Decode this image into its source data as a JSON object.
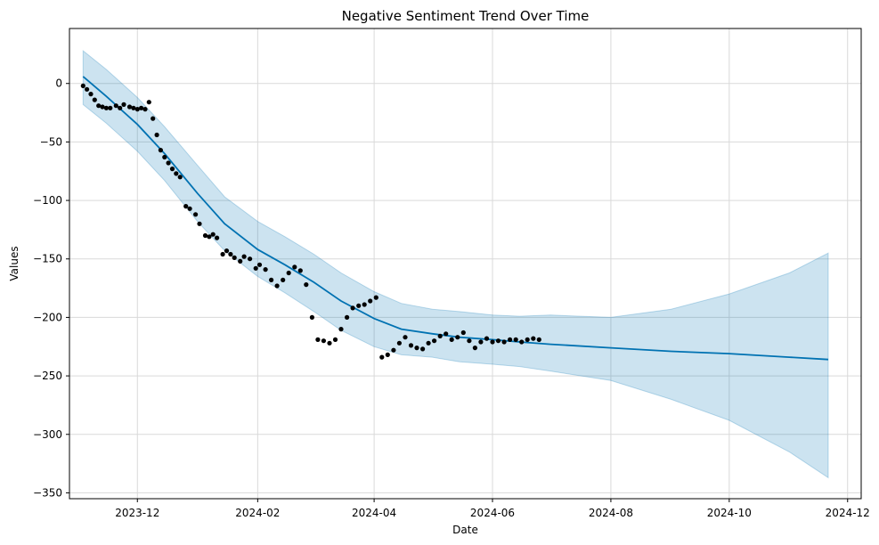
{
  "chart_data": {
    "type": "line",
    "title": "Negative Sentiment Trend Over Time",
    "xlabel": "Date",
    "ylabel": "Values",
    "x_is_date": true,
    "xlim": [
      "2023-10-27",
      "2024-12-08"
    ],
    "ylim": [
      -355,
      47
    ],
    "grid": true,
    "x_ticks": [
      "2023-12",
      "2024-02",
      "2024-04",
      "2024-06",
      "2024-08",
      "2024-10",
      "2024-12"
    ],
    "y_ticks": [
      0,
      -50,
      -100,
      -150,
      -200,
      -250,
      -300,
      -350
    ],
    "colors": {
      "forecast_line": "#0072b2",
      "uncertainty_band": "#0072b2",
      "observed_points": "#000000"
    },
    "series": [
      {
        "name": "forecast",
        "kind": "line",
        "x": [
          "2023-11-03",
          "2023-11-15",
          "2023-12-01",
          "2023-12-15",
          "2024-01-01",
          "2024-01-15",
          "2024-02-01",
          "2024-02-15",
          "2024-03-01",
          "2024-03-15",
          "2024-04-01",
          "2024-04-15",
          "2024-05-01",
          "2024-05-15",
          "2024-06-01",
          "2024-06-15",
          "2024-07-01",
          "2024-08-01",
          "2024-09-01",
          "2024-10-01",
          "2024-11-01",
          "2024-11-21"
        ],
        "y": [
          6,
          -11,
          -35,
          -60,
          -94,
          -120,
          -142,
          -155,
          -170,
          -186,
          -201,
          -210,
          -214,
          -217,
          -219,
          -221,
          -223,
          -226,
          -229,
          -231,
          -234,
          -236
        ]
      },
      {
        "name": "uncertainty interval",
        "kind": "band",
        "x": [
          "2023-11-03",
          "2023-11-15",
          "2023-12-01",
          "2023-12-15",
          "2024-01-01",
          "2024-01-15",
          "2024-02-01",
          "2024-02-15",
          "2024-03-01",
          "2024-03-15",
          "2024-04-01",
          "2024-04-15",
          "2024-05-01",
          "2024-05-15",
          "2024-06-01",
          "2024-06-15",
          "2024-07-01",
          "2024-08-01",
          "2024-09-01",
          "2024-10-01",
          "2024-11-01",
          "2024-11-21"
        ],
        "upper": [
          28,
          12,
          -12,
          -37,
          -70,
          -97,
          -118,
          -131,
          -146,
          -162,
          -178,
          -188,
          -193,
          -195,
          -198,
          -199,
          -198,
          -200,
          -193,
          -180,
          -162,
          -145
        ],
        "lower": [
          -18,
          -34,
          -58,
          -83,
          -118,
          -143,
          -165,
          -179,
          -195,
          -211,
          -225,
          -232,
          -234,
          -238,
          -240,
          -242,
          -246,
          -254,
          -270,
          -288,
          -315,
          -337
        ]
      },
      {
        "name": "observed",
        "kind": "scatter",
        "x": [
          "2023-11-03",
          "2023-11-05",
          "2023-11-07",
          "2023-11-09",
          "2023-11-11",
          "2023-11-13",
          "2023-11-15",
          "2023-11-17",
          "2023-11-20",
          "2023-11-22",
          "2023-11-24",
          "2023-11-27",
          "2023-11-29",
          "2023-12-01",
          "2023-12-03",
          "2023-12-05",
          "2023-12-07",
          "2023-12-09",
          "2023-12-11",
          "2023-12-13",
          "2023-12-15",
          "2023-12-17",
          "2023-12-19",
          "2023-12-21",
          "2023-12-23",
          "2023-12-26",
          "2023-12-28",
          "2023-12-31",
          "2024-01-02",
          "2024-01-05",
          "2024-01-07",
          "2024-01-09",
          "2024-01-11",
          "2024-01-14",
          "2024-01-16",
          "2024-01-18",
          "2024-01-20",
          "2024-01-23",
          "2024-01-25",
          "2024-01-28",
          "2024-01-31",
          "2024-02-02",
          "2024-02-05",
          "2024-02-08",
          "2024-02-11",
          "2024-02-14",
          "2024-02-17",
          "2024-02-20",
          "2024-02-23",
          "2024-02-26",
          "2024-02-29",
          "2024-03-03",
          "2024-03-06",
          "2024-03-09",
          "2024-03-12",
          "2024-03-15",
          "2024-03-18",
          "2024-03-21",
          "2024-03-24",
          "2024-03-27",
          "2024-03-30",
          "2024-04-02",
          "2024-04-05",
          "2024-04-08",
          "2024-04-11",
          "2024-04-14",
          "2024-04-17",
          "2024-04-20",
          "2024-04-23",
          "2024-04-26",
          "2024-04-29",
          "2024-05-02",
          "2024-05-05",
          "2024-05-08",
          "2024-05-11",
          "2024-05-14",
          "2024-05-17",
          "2024-05-20",
          "2024-05-23",
          "2024-05-26",
          "2024-05-29",
          "2024-06-01",
          "2024-06-04",
          "2024-06-07",
          "2024-06-10",
          "2024-06-13",
          "2024-06-16",
          "2024-06-19",
          "2024-06-22",
          "2024-06-25"
        ],
        "y": [
          -2,
          -5,
          -9,
          -14,
          -19,
          -20,
          -21,
          -21,
          -19,
          -21,
          -18,
          -20,
          -21,
          -22,
          -21,
          -22,
          -16,
          -30,
          -44,
          -57,
          -63,
          -68,
          -73,
          -77,
          -80,
          -105,
          -107,
          -112,
          -120,
          -130,
          -131,
          -129,
          -132,
          -146,
          -143,
          -146,
          -149,
          -152,
          -148,
          -150,
          -158,
          -155,
          -159,
          -168,
          -173,
          -168,
          -162,
          -157,
          -160,
          -172,
          -200,
          -219,
          -220,
          -222,
          -219,
          -210,
          -200,
          -192,
          -190,
          -189,
          -186,
          -183,
          -234,
          -232,
          -228,
          -222,
          -217,
          -224,
          -226,
          -227,
          -222,
          -220,
          -216,
          -214,
          -219,
          -217,
          -213,
          -220,
          -226,
          -221,
          -218,
          -221,
          -220,
          -221,
          -219,
          -219,
          -221,
          -219,
          -218,
          -219
        ]
      }
    ]
  }
}
